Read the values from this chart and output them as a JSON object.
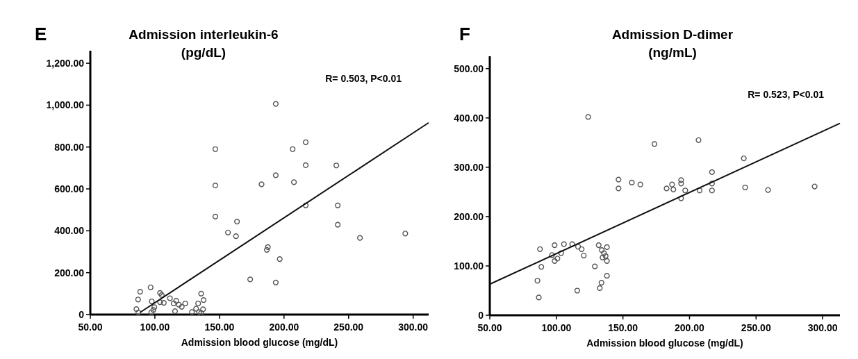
{
  "chart_data": [
    {
      "type": "scatter",
      "title": "Admission interleukin-6",
      "subtitle": "(pg/dL)",
      "xlabel": "Admission blood glucose (mg/dL)",
      "annotations": [
        "E",
        "R= 0.503, P<0.01"
      ],
      "xlim": [
        50,
        312
      ],
      "xticks": [
        {
          "value": 50,
          "label": "50.00"
        },
        {
          "value": 100,
          "label": "100.00"
        },
        {
          "value": 150,
          "label": "150.00"
        },
        {
          "value": 200,
          "label": "200.00"
        },
        {
          "value": 250,
          "label": "250.00"
        },
        {
          "value": 300,
          "label": "300.00"
        }
      ],
      "ylim": [
        0,
        1260
      ],
      "yticks": [
        0,
        {
          "value": 200,
          "label": "200.00"
        },
        {
          "value": 400,
          "label": "400.00"
        },
        {
          "value": 600,
          "label": "600.00"
        },
        {
          "value": 800,
          "label": "800.00"
        },
        {
          "value": 1000,
          "label": "1,000.00"
        },
        {
          "value": 1200,
          "label": "1,200.00"
        }
      ],
      "grid": false,
      "marker": "circle",
      "series": [
        {
          "color": "#555555",
          "x": [
            193.6,
            146.8,
            216.8,
            206.7,
            216.8,
            240.5,
            193.6,
            182.6,
            207.7,
            146.8,
            216.8,
            241.6,
            146.8,
            163.6,
            156.6,
            162.8,
            241.6,
            258.8,
            293.9,
            187.5,
            186.7,
            196.7,
            173.8,
            193.6,
            88.6,
            96.7,
            87.0,
            85.7,
            87.2,
            97.6,
            99.6,
            98.8,
            97.2,
            104.0,
            105.3,
            104.0,
            106.9,
            111.7,
            116.5,
            114.6,
            118.6,
            120.8,
            123.5,
            115.6,
            128.7,
            133.5,
            135.8,
            137.7,
            131.9,
            134.2,
            137.3,
            135.8
          ],
          "values": [
            1006,
            790,
            823,
            790,
            713,
            712,
            665,
            622,
            632,
            616,
            521,
            521,
            468,
            444,
            392,
            374,
            429,
            366,
            387,
            322,
            309,
            265,
            168,
            153,
            109,
            130,
            72,
            26,
            10,
            63,
            35,
            22,
            10,
            103,
            93,
            59,
            56,
            78,
            66,
            53,
            47,
            37,
            53,
            16,
            12,
            53,
            100,
            69,
            28,
            12,
            25,
            7
          ]
        },
        {
          "type": "line",
          "marker": "none",
          "color": "#111111",
          "x": [
            88.5,
            312
          ],
          "values": [
            10,
            916
          ]
        }
      ]
    },
    {
      "type": "scatter",
      "title": "Admission D-dimer",
      "subtitle": "(ng/mL)",
      "xlabel": "Admission blood glucose (mg/dL)",
      "annotations": [
        "F",
        "R= 0.523, P<0.01"
      ],
      "xlim": [
        50,
        313
      ],
      "xticks": [
        {
          "value": 50,
          "label": "50.00"
        },
        {
          "value": 100,
          "label": "100.00"
        },
        {
          "value": 150,
          "label": "150.00"
        },
        {
          "value": 200,
          "label": "200.00"
        },
        {
          "value": 250,
          "label": "250.00"
        },
        {
          "value": 300,
          "label": "300.00"
        }
      ],
      "ylim": [
        0,
        525
      ],
      "yticks": [
        0,
        {
          "value": 100,
          "label": "100.00"
        },
        {
          "value": 200,
          "label": "200.00"
        },
        {
          "value": 300,
          "label": "300.00"
        },
        {
          "value": 400,
          "label": "400.00"
        },
        {
          "value": 500,
          "label": "500.00"
        }
      ],
      "grid": false,
      "marker": "circle",
      "series": [
        {
          "color": "#555555",
          "x": [
            123.9,
            173.7,
            206.8,
            240.8,
            216.9,
            146.7,
            146.7,
            156.7,
            163.1,
            186.9,
            182.8,
            187.9,
            193.7,
            193.7,
            196.8,
            193.7,
            207.6,
            216.9,
            216.9,
            241.8,
            259.0,
            294.0,
            87.7,
            98.7,
            105.7,
            111.9,
            116.3,
            119.0,
            96.8,
            103.6,
            100.8,
            98.7,
            88.7,
            120.6,
            128.9,
            131.8,
            138.0,
            134.1,
            135.7,
            137.0,
            134.7,
            138.0,
            138.0,
            133.9,
            132.6,
            115.7,
            85.8,
            86.8
          ],
          "values": [
            402,
            347,
            355,
            318,
            290,
            275,
            257,
            269,
            265,
            265,
            257,
            255,
            274,
            267,
            253,
            237,
            253,
            267,
            253,
            259,
            254,
            261,
            134,
            142,
            144,
            144,
            139,
            134,
            122,
            126,
            115,
            110,
            98,
            121,
            99,
            142,
            138,
            132,
            126,
            120,
            117,
            110,
            80,
            66,
            55,
            50,
            70,
            36
          ]
        },
        {
          "type": "line",
          "marker": "none",
          "color": "#111111",
          "x": [
            50,
            313
          ],
          "values": [
            63,
            389
          ]
        }
      ]
    }
  ]
}
